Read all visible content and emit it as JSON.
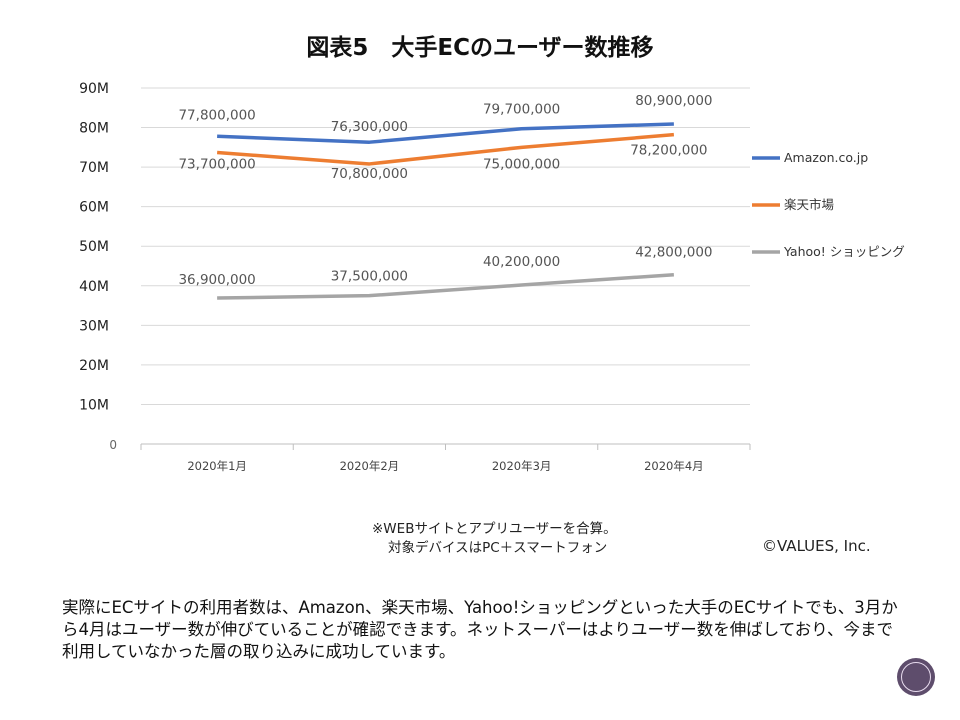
{
  "title": "図表5　大手ECのユーザー数推移",
  "chart_data": {
    "type": "line",
    "categories": [
      "2020年1月",
      "2020年2月",
      "2020年3月",
      "2020年4月"
    ],
    "ylim": [
      0,
      90000000
    ],
    "yticks": [
      "0",
      "10M",
      "20M",
      "30M",
      "40M",
      "50M",
      "60M",
      "70M",
      "80M",
      "90M"
    ],
    "grid": true,
    "legend_position": "right",
    "series": [
      {
        "name": "Amazon.co.jp",
        "color": "#4472c4",
        "values": [
          77800000,
          76300000,
          79700000,
          80900000
        ],
        "labels": [
          "77,800,000",
          "76,300,000",
          "79,700,000",
          "80,900,000"
        ]
      },
      {
        "name": "楽天市場",
        "color": "#ed7d31",
        "values": [
          73700000,
          70800000,
          75000000,
          78200000
        ],
        "labels": [
          "73,700,000",
          "70,800,000",
          "75,000,000",
          "78,200,000"
        ]
      },
      {
        "name": "Yahoo! ショッピング",
        "color": "#a5a5a5",
        "values": [
          36900000,
          37500000,
          40200000,
          42800000
        ],
        "labels": [
          "36,900,000",
          "37,500,000",
          "40,200,000",
          "42,800,000"
        ]
      }
    ]
  },
  "note": [
    "※WEBサイトとアプリユーザーを合算。",
    "対象デバイスはPC＋スマートフォン"
  ],
  "copyright": "©VALUES, Inc.",
  "caption": "実際にECサイトの利用者数は、Amazon、楽天市場、Yahoo!ショッピングといった大手のECサイトでも、3月から4月はユーザー数が伸びていることが確認できます。ネットスーパーはよりユーザー数を伸ばしており、今まで利用していなかった層の取り込みに成功しています。"
}
